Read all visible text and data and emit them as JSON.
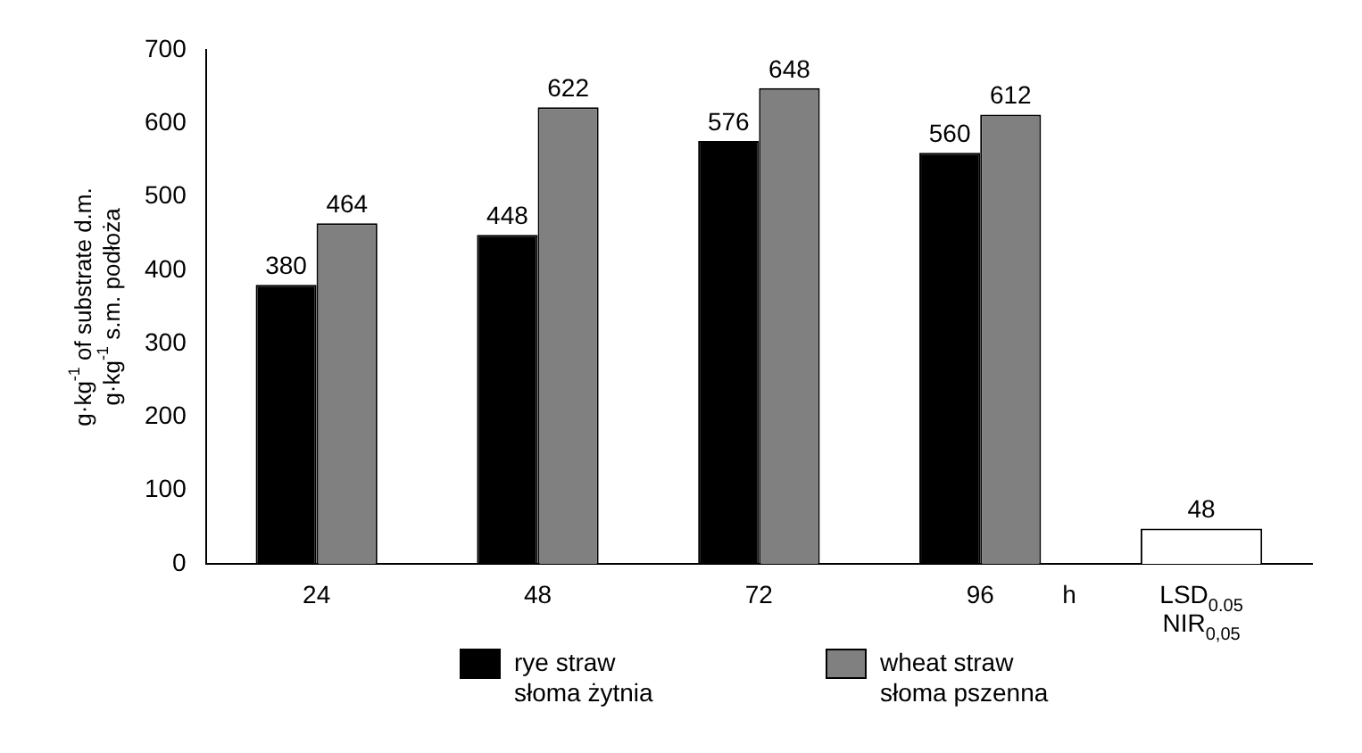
{
  "chart_data": {
    "type": "bar",
    "categories": [
      "24",
      "48",
      "72",
      "96",
      "LSD$_{0.05}$\nNIR$_{0,05}$"
    ],
    "xlabel": "h",
    "ylabel": "g·kg$^{-1}$ of substrate d.m.\ng·kg$^{-1}$ s.m. podłoża",
    "series": [
      {
        "name": "rye straw\nsłoma żytnia",
        "color": "#000000",
        "values": [
          380,
          448,
          576,
          560,
          null
        ]
      },
      {
        "name": "wheat straw\nsłoma pszenna",
        "color": "#808080",
        "values": [
          464,
          622,
          648,
          612,
          null
        ]
      },
      {
        "color": "#ffffff",
        "values": [
          null,
          null,
          null,
          null,
          48
        ]
      }
    ],
    "ylim": [
      0,
      700
    ],
    "yticks": [
      0,
      100,
      200,
      300,
      400,
      500,
      600,
      700
    ],
    "grid": false,
    "legend": "bottom",
    "data_labels": true
  }
}
